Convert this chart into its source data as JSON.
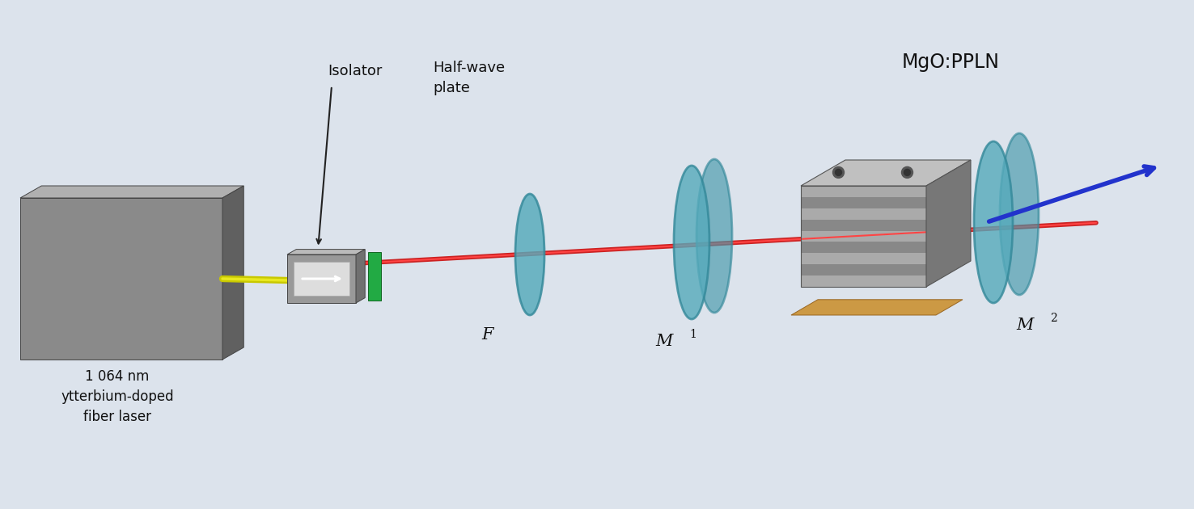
{
  "bg_color": "#dce3ec",
  "labels": {
    "isolator": "Isolator",
    "half_wave": "Half-wave\nplate",
    "fiber_laser": "1 064 nm\nytterbium-doped\nfiber laser",
    "F": "F",
    "M1": "M",
    "M1_sub": "1",
    "M2": "M",
    "M2_sub": "2",
    "MgO": "MgO:PPLN"
  },
  "colors": {
    "laser_beam_yellow": "#c8c800",
    "laser_beam_yellow2": "#e8e820",
    "laser_beam_red": "#cc2222",
    "laser_beam_red2": "#ff4444",
    "laser_beam_blue": "#2233cc",
    "box_front": "#8a8a8a",
    "box_top": "#b0b0b0",
    "box_side": "#606060",
    "isolator_body": "#999999",
    "isolator_top": "#bbbbbb",
    "isolator_side": "#707070",
    "isolator_inner": "#cccccc",
    "half_wave_plate": "#22aa44",
    "lens_face": "#55aabb",
    "lens_edge": "#338899",
    "lens_face2": "#4499aa",
    "crystal_stripe1": "#aaaaaa",
    "crystal_stripe2": "#888888",
    "crystal_top": "#c0c0c0",
    "crystal_side": "#777777",
    "crystal_base": "#cc9944",
    "crystal_base_edge": "#996622",
    "bolt_color": "#555555",
    "annotation_arrow": "#222222",
    "text_dark": "#111111"
  }
}
